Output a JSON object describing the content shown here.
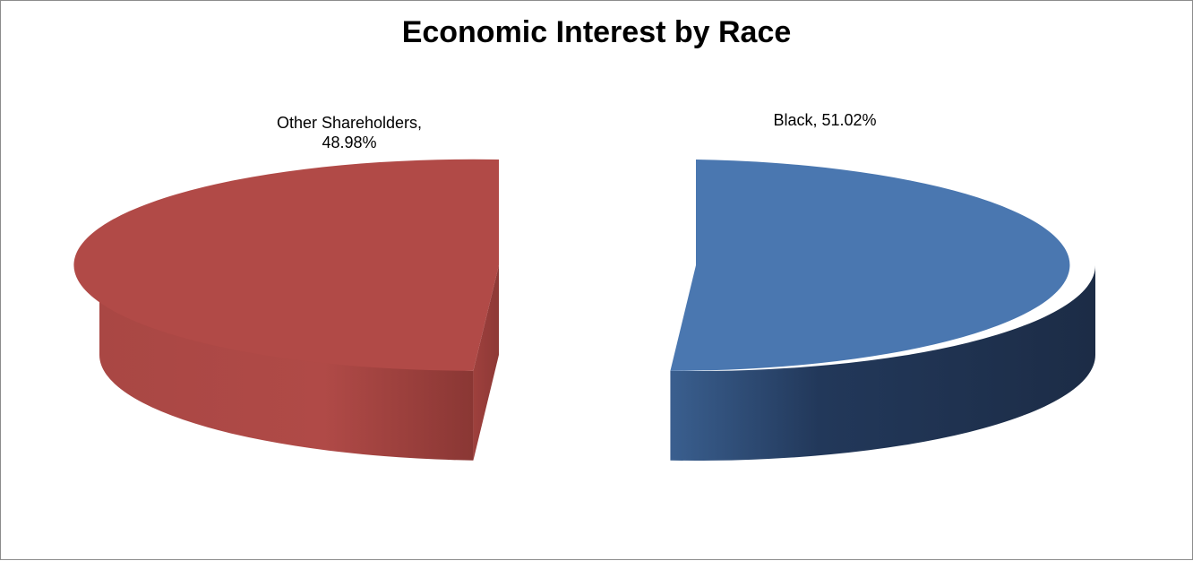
{
  "chart_data": {
    "type": "pie",
    "title": "Economic Interest by Race",
    "categories": [
      "Black",
      "Other Shareholders"
    ],
    "values": [
      51.02,
      48.98
    ],
    "value_unit": "%",
    "style": "3d-exploded",
    "colors": {
      "Black": "#4a77b0",
      "Other Shareholders": "#b14a47"
    },
    "side_colors": {
      "Black": "#1f3150",
      "Other Shareholders": "#8c3836"
    },
    "data_labels": [
      {
        "category": "Black",
        "lines": [
          "Black, 51.02%"
        ]
      },
      {
        "category": "Other Shareholders",
        "lines": [
          "Other Shareholders,",
          "48.98%"
        ]
      }
    ],
    "legend": "none"
  }
}
